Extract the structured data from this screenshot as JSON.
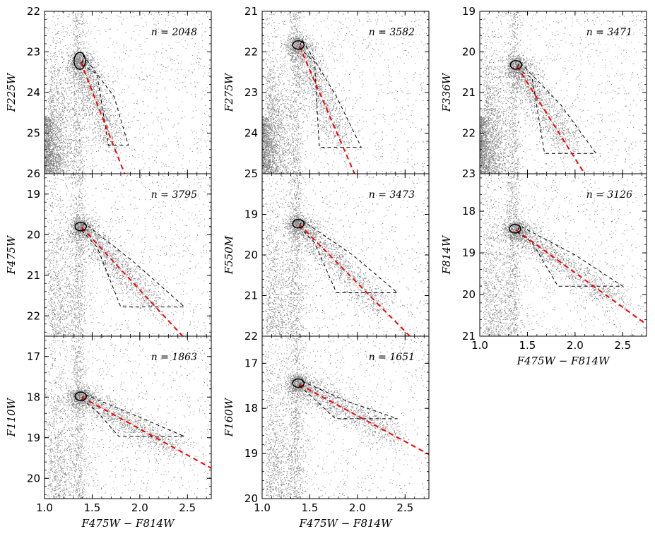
{
  "figure": {
    "colors": {
      "points": "#808080",
      "fit_line": "#ff0000",
      "selection_box": "#000000",
      "ellipse": "#000000",
      "frame": "#000000",
      "background": "#ffffff"
    }
  },
  "chart_data": [
    {
      "type": "scatter",
      "panel": "F225W",
      "ylabel": "F225W",
      "xlabel": "",
      "xlim": [
        1.0,
        2.75
      ],
      "ylim": [
        26,
        22
      ],
      "yticks": [
        "22",
        "23",
        "24",
        "25",
        "26"
      ],
      "xticks": [],
      "n_label": "n = 2048",
      "ellipse": {
        "x": 1.37,
        "y": 23.22
      },
      "fit_line": {
        "x": [
          1.38,
          1.84
        ],
        "y": [
          23.25,
          26.0
        ]
      },
      "selection_box": {
        "x": [
          1.39,
          1.55,
          1.67,
          1.88,
          1.73,
          1.41
        ],
        "y": [
          23.3,
          23.55,
          25.3,
          25.3,
          24.1,
          23.1
        ]
      },
      "rgb_density": "high"
    },
    {
      "type": "scatter",
      "panel": "F275W",
      "ylabel": "F275W",
      "xlabel": "",
      "xlim": [
        1.0,
        2.75
      ],
      "ylim": [
        25,
        21
      ],
      "yticks": [
        "21",
        "22",
        "23",
        "24",
        "25"
      ],
      "xticks": [],
      "n_label": "n = 3582",
      "ellipse": {
        "x": 1.38,
        "y": 21.83
      },
      "fit_line": {
        "x": [
          1.39,
          1.97
        ],
        "y": [
          21.85,
          25.0
        ]
      },
      "selection_box": {
        "x": [
          1.39,
          1.55,
          1.6,
          2.04,
          1.78,
          1.42
        ],
        "y": [
          21.9,
          22.25,
          24.35,
          24.35,
          23.1,
          21.7
        ]
      },
      "rgb_density": "high"
    },
    {
      "type": "scatter",
      "panel": "F336W",
      "ylabel": "F336W",
      "xlabel": "",
      "xlim": [
        1.0,
        2.75
      ],
      "ylim": [
        23,
        19
      ],
      "yticks": [
        "19",
        "20",
        "21",
        "22",
        "23"
      ],
      "xticks": [],
      "n_label": "n = 3471",
      "ellipse": {
        "x": 1.38,
        "y": 20.32
      },
      "fit_line": {
        "x": [
          1.39,
          2.1
        ],
        "y": [
          20.35,
          23.0
        ]
      },
      "selection_box": {
        "x": [
          1.39,
          1.55,
          1.68,
          2.22,
          1.85,
          1.42
        ],
        "y": [
          20.4,
          20.65,
          22.5,
          22.5,
          21.3,
          20.25
        ]
      },
      "rgb_density": "high"
    },
    {
      "type": "scatter",
      "panel": "F475W",
      "ylabel": "F475W",
      "xlabel": "",
      "xlim": [
        1.0,
        2.75
      ],
      "ylim": [
        22.5,
        18.5
      ],
      "yticks": [
        "19",
        "20",
        "21",
        "22"
      ],
      "xticks": [],
      "n_label": "n = 3795",
      "ellipse": {
        "x": 1.38,
        "y": 19.8
      },
      "fit_line": {
        "x": [
          1.39,
          2.45
        ],
        "y": [
          19.82,
          22.5
        ]
      },
      "selection_box": {
        "x": [
          1.39,
          1.55,
          1.8,
          2.47,
          1.95,
          1.42
        ],
        "y": [
          19.9,
          20.3,
          21.78,
          21.78,
          20.7,
          19.72
        ]
      },
      "rgb_density": "medium"
    },
    {
      "type": "scatter",
      "panel": "F550M",
      "ylabel": "F550M",
      "xlabel": "",
      "xlim": [
        1.0,
        2.75
      ],
      "ylim": [
        22,
        18.0
      ],
      "yticks": [
        "19",
        "20",
        "21",
        "22"
      ],
      "xticks": [],
      "n_label": "n = 3473",
      "ellipse": {
        "x": 1.38,
        "y": 19.23
      },
      "fit_line": {
        "x": [
          1.39,
          2.55
        ],
        "y": [
          19.25,
          22.0
        ]
      },
      "selection_box": {
        "x": [
          1.39,
          1.55,
          1.78,
          2.42,
          1.95,
          1.42
        ],
        "y": [
          19.3,
          19.7,
          20.93,
          20.93,
          20.0,
          19.15
        ]
      },
      "rgb_density": "medium"
    },
    {
      "type": "scatter",
      "panel": "F814W",
      "ylabel": "F814W",
      "xlabel": "F475W − F814W",
      "xlim": [
        1.0,
        2.75
      ],
      "ylim": [
        21,
        17.1
      ],
      "yticks": [
        "18",
        "19",
        "20",
        "21"
      ],
      "xticks": [
        "1.0",
        "1.5",
        "2.0",
        "2.5"
      ],
      "n_label": "n = 3126",
      "ellipse": {
        "x": 1.37,
        "y": 18.42
      },
      "fit_line": {
        "x": [
          1.38,
          2.75
        ],
        "y": [
          18.45,
          20.72
        ]
      },
      "selection_box": {
        "x": [
          1.39,
          1.55,
          1.82,
          2.5,
          2.0,
          1.42
        ],
        "y": [
          18.5,
          18.75,
          19.8,
          19.8,
          19.05,
          18.35
        ]
      },
      "rgb_density": "medium"
    },
    {
      "type": "scatter",
      "panel": "F110W",
      "ylabel": "F110W",
      "xlabel": "F475W − F814W",
      "xlim": [
        1.0,
        2.75
      ],
      "ylim": [
        20.5,
        16.5
      ],
      "yticks": [
        "17",
        "18",
        "19",
        "20"
      ],
      "xticks": [
        "1.0",
        "1.5",
        "2.0",
        "2.5"
      ],
      "n_label": "n = 1863",
      "ellipse": {
        "x": 1.38,
        "y": 17.98
      },
      "fit_line": {
        "x": [
          1.39,
          2.75
        ],
        "y": [
          18.0,
          19.75
        ]
      },
      "selection_box": {
        "x": [
          1.39,
          1.55,
          1.78,
          2.47,
          1.95,
          1.42
        ],
        "y": [
          18.05,
          18.35,
          18.97,
          18.97,
          18.45,
          17.93
        ]
      },
      "rgb_density": "low"
    },
    {
      "type": "scatter",
      "panel": "F160W",
      "ylabel": "F160W",
      "xlabel": "F475W − F814W",
      "xlim": [
        1.0,
        2.75
      ],
      "ylim": [
        20,
        16.4
      ],
      "yticks": [
        "17",
        "18",
        "19",
        "20"
      ],
      "xticks": [
        "1.0",
        "1.5",
        "2.0",
        "2.5"
      ],
      "n_label": "n = 1651",
      "ellipse": {
        "x": 1.38,
        "y": 17.44
      },
      "fit_line": {
        "x": [
          1.39,
          2.75
        ],
        "y": [
          17.47,
          19.02
        ]
      },
      "selection_box": {
        "x": [
          1.39,
          1.55,
          1.77,
          2.42,
          1.9,
          1.42
        ],
        "y": [
          17.5,
          17.8,
          18.23,
          18.23,
          17.85,
          17.4
        ]
      },
      "rgb_density": "low"
    }
  ]
}
